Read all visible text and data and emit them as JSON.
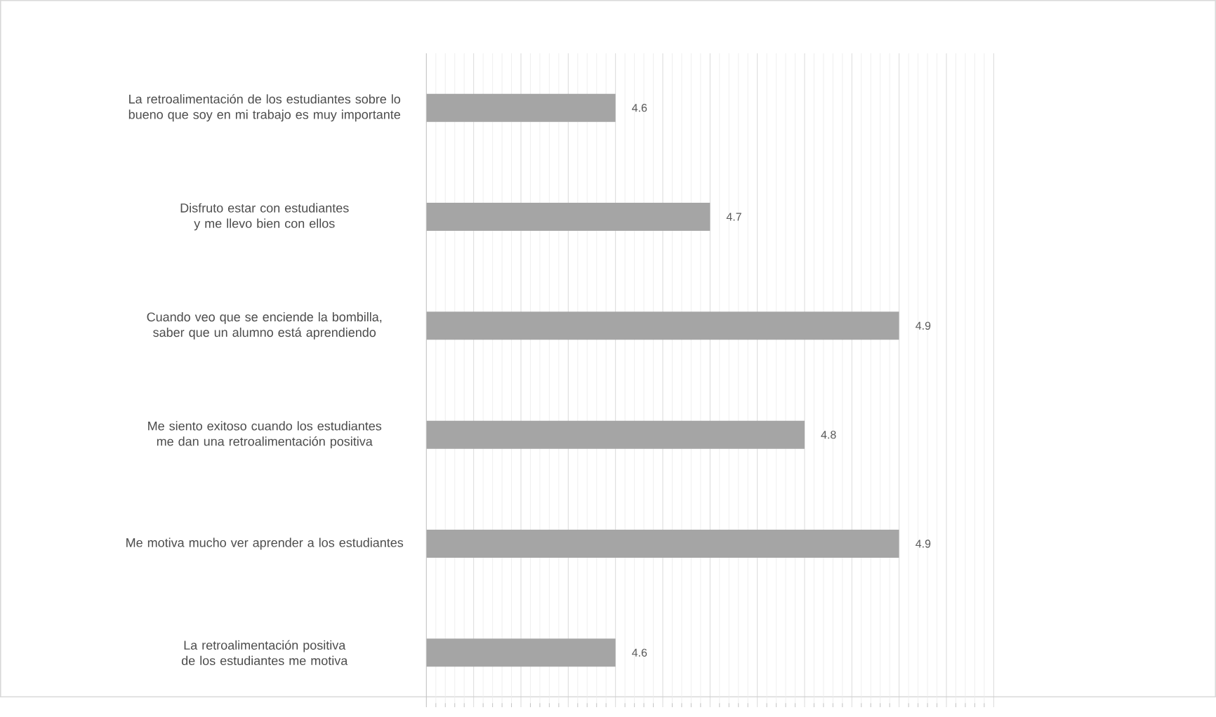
{
  "chart_data": {
    "type": "bar",
    "orientation": "horizontal",
    "categories": [
      "La retroalimentación de los estudiantes sobre lo bueno que soy en mi trabajo es muy importante",
      "Disfruto  estar con estudiantes y me llevo bien con ellos",
      "Cuando veo que se enciende la bombilla, saber que un alumno está aprendiendo",
      "Me siento exitoso cuando los estudiantes me dan una retroalimentación positiva",
      "Me motiva mucho ver aprender a los estudiantes",
      "La retroalimentación positiva de los estudiantes me motiva"
    ],
    "values": [
      4.6,
      4.7,
      4.9,
      4.8,
      4.9,
      4.6
    ],
    "color": "#a5a5a5",
    "data_labels": true,
    "xlim": [
      4.4,
      5.0
    ],
    "xticks": [
      {
        "value": 4.4,
        "label": null
      },
      {
        "value": 4.45,
        "label": null
      },
      {
        "value": 4.5,
        "label": null
      },
      {
        "value": 4.55,
        "label": null
      },
      {
        "value": 4.6,
        "label": null
      },
      {
        "value": 4.65,
        "label": null
      },
      {
        "value": 4.7,
        "label": null
      },
      {
        "value": 4.75,
        "label": null
      },
      {
        "value": 4.8,
        "label": null
      },
      {
        "value": 4.85,
        "label": null
      },
      {
        "value": 4.9,
        "label": null
      },
      {
        "value": 4.95,
        "label": null
      },
      {
        "value": 5.0,
        "label": null
      }
    ],
    "grid": "x"
  }
}
